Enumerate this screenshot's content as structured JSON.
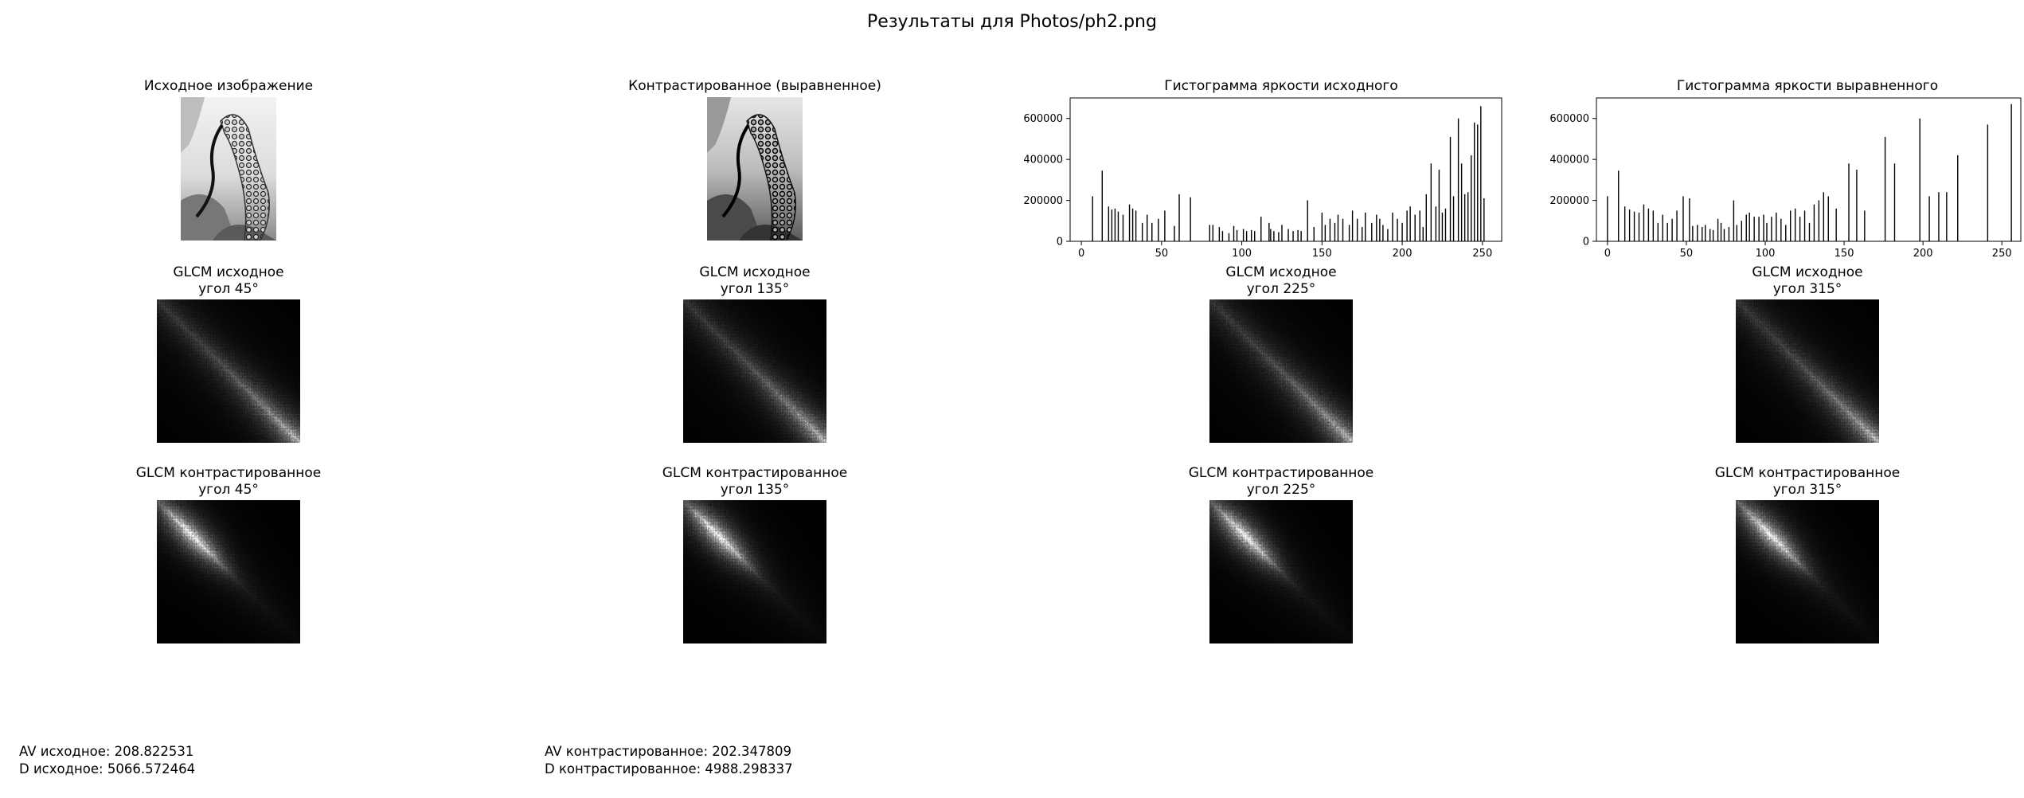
{
  "figure": {
    "suptitle": "Результаты для Photos/ph2.png"
  },
  "panels": {
    "original_title": "Исходное изображение",
    "contrasted_title": "Контрастированное (выравненное)",
    "hist_original_title": "Гистограмма яркости исходного",
    "hist_equalized_title": "Гистограмма яркости выравненного"
  },
  "glcm": {
    "original": [
      {
        "line1": "GLCM исходное",
        "line2": "угол 45°"
      },
      {
        "line1": "GLCM исходное",
        "line2": "угол 135°"
      },
      {
        "line1": "GLCM исходное",
        "line2": "угол 225°"
      },
      {
        "line1": "GLCM исходное",
        "line2": "угол 315°"
      }
    ],
    "contrasted": [
      {
        "line1": "GLCM контрастированное",
        "line2": "угол 45°"
      },
      {
        "line1": "GLCM контрастированное",
        "line2": "угол 135°"
      },
      {
        "line1": "GLCM контрастированное",
        "line2": "угол 225°"
      },
      {
        "line1": "GLCM контрастированное",
        "line2": "угол 315°"
      }
    ]
  },
  "stats": {
    "av_original": "AV исходное: 208.822531",
    "d_original": "D исходное: 5066.572464",
    "av_contrasted": "AV контрастированное: 202.347809",
    "d_contrasted": "D контрастированное: 4988.298337"
  },
  "chart_data": [
    {
      "type": "bar",
      "title": "Гистограмма яркости исходного",
      "xlabel": "",
      "ylabel": "",
      "xlim": [
        -7,
        262
      ],
      "ylim": [
        0,
        700000
      ],
      "xticks": [
        0,
        50,
        100,
        150,
        200,
        250
      ],
      "yticks": [
        0,
        200000,
        400000,
        600000
      ],
      "x": [
        7,
        13,
        17,
        19,
        21,
        23,
        26,
        30,
        32,
        34,
        38,
        41,
        44,
        48,
        52,
        58,
        61,
        68,
        80,
        82,
        86,
        88,
        92,
        95,
        97,
        101,
        103,
        106,
        108,
        112,
        117,
        118,
        120,
        123,
        125,
        129,
        132,
        135,
        137,
        141,
        145,
        150,
        152,
        155,
        158,
        160,
        163,
        167,
        169,
        172,
        175,
        177,
        181,
        184,
        186,
        188,
        191,
        194,
        197,
        200,
        203,
        205,
        208,
        211,
        213,
        215,
        218,
        221,
        223,
        225,
        227,
        230,
        232,
        235,
        237,
        239,
        241,
        243,
        245,
        247,
        249,
        251
      ],
      "values": [
        220000,
        345000,
        170000,
        155000,
        160000,
        145000,
        130000,
        180000,
        160000,
        150000,
        90000,
        130000,
        90000,
        110000,
        150000,
        75000,
        230000,
        215000,
        80000,
        80000,
        70000,
        50000,
        40000,
        75000,
        55000,
        60000,
        50000,
        55000,
        50000,
        120000,
        90000,
        60000,
        50000,
        45000,
        80000,
        60000,
        50000,
        55000,
        50000,
        200000,
        70000,
        140000,
        80000,
        110000,
        90000,
        130000,
        110000,
        80000,
        150000,
        110000,
        70000,
        140000,
        90000,
        130000,
        110000,
        80000,
        60000,
        140000,
        110000,
        90000,
        150000,
        170000,
        130000,
        150000,
        70000,
        230000,
        380000,
        170000,
        350000,
        140000,
        160000,
        510000,
        220000,
        600000,
        380000,
        230000,
        240000,
        420000,
        580000,
        570000,
        660000,
        210000
      ]
    },
    {
      "type": "bar",
      "title": "Гистограмма яркости выравненного",
      "xlabel": "",
      "ylabel": "",
      "xlim": [
        -7,
        262
      ],
      "ylim": [
        0,
        700000
      ],
      "xticks": [
        0,
        50,
        100,
        150,
        200,
        250
      ],
      "yticks": [
        0,
        200000,
        400000,
        600000
      ],
      "x": [
        0,
        7,
        11,
        14,
        17,
        20,
        23,
        26,
        29,
        32,
        35,
        38,
        41,
        44,
        48,
        52,
        54,
        57,
        60,
        62,
        65,
        67,
        70,
        72,
        74,
        77,
        80,
        82,
        85,
        88,
        90,
        93,
        96,
        99,
        101,
        104,
        107,
        110,
        113,
        116,
        119,
        122,
        125,
        128,
        131,
        134,
        137,
        140,
        145,
        153,
        158,
        163,
        176,
        182,
        198,
        204,
        210,
        215,
        222,
        241,
        256
      ],
      "values": [
        220000,
        345000,
        170000,
        155000,
        145000,
        140000,
        180000,
        160000,
        150000,
        90000,
        130000,
        90000,
        110000,
        150000,
        220000,
        210000,
        75000,
        80000,
        70000,
        80000,
        60000,
        55000,
        110000,
        90000,
        60000,
        70000,
        200000,
        80000,
        100000,
        130000,
        140000,
        120000,
        120000,
        130000,
        90000,
        120000,
        140000,
        110000,
        80000,
        150000,
        160000,
        120000,
        150000,
        90000,
        180000,
        200000,
        240000,
        220000,
        160000,
        380000,
        350000,
        150000,
        510000,
        380000,
        600000,
        220000,
        240000,
        240000,
        420000,
        570000,
        670000
      ]
    }
  ]
}
